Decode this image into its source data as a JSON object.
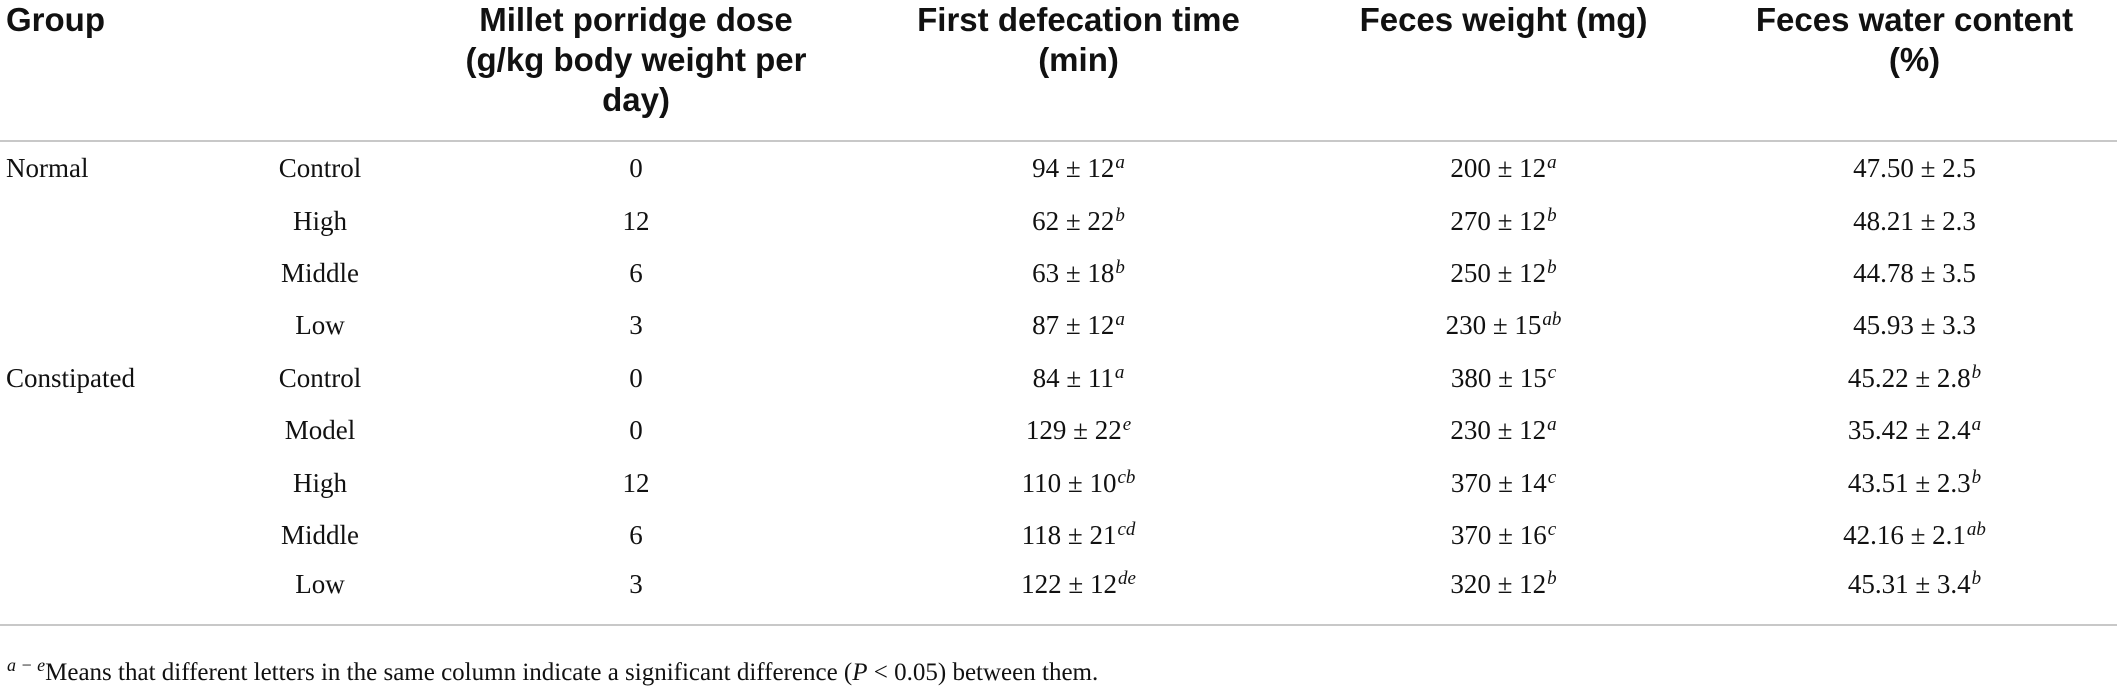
{
  "headers": {
    "group": "Group",
    "dose_lines": [
      "Millet porridge dose",
      "(g/kg body weight per",
      "day)"
    ],
    "defecation_lines": [
      "First defecation time",
      "(min)"
    ],
    "weight": "Feces weight (mg)",
    "water_lines": [
      "Feces water content",
      "(%)"
    ]
  },
  "rows": [
    {
      "group": "Normal",
      "sub": "Control",
      "dose": "0",
      "def": "94 ± 12",
      "def_sup": "a",
      "wt": "200 ± 12",
      "wt_sup": "a",
      "water": "47.50 ± 2.5",
      "water_sup": ""
    },
    {
      "group": "",
      "sub": "High",
      "dose": "12",
      "def": "62 ± 22",
      "def_sup": "b",
      "wt": "270 ± 12",
      "wt_sup": "b",
      "water": "48.21 ± 2.3",
      "water_sup": ""
    },
    {
      "group": "",
      "sub": "Middle",
      "dose": "6",
      "def": "63 ± 18",
      "def_sup": "b",
      "wt": "250 ± 12",
      "wt_sup": "b",
      "water": "44.78 ± 3.5",
      "water_sup": ""
    },
    {
      "group": "",
      "sub": "Low",
      "dose": "3",
      "def": "87 ± 12",
      "def_sup": "a",
      "wt": "230 ± 15",
      "wt_sup": "ab",
      "water": "45.93 ± 3.3",
      "water_sup": ""
    },
    {
      "group": "Constipated",
      "sub": "Control",
      "dose": "0",
      "def": "84 ± 11",
      "def_sup": "a",
      "wt": "380 ± 15",
      "wt_sup": "c",
      "water": "45.22 ± 2.8",
      "water_sup": "b"
    },
    {
      "group": "",
      "sub": "Model",
      "dose": "0",
      "def": "129 ± 22",
      "def_sup": "e",
      "wt": "230 ± 12",
      "wt_sup": "a",
      "water": "35.42 ± 2.4",
      "water_sup": "a"
    },
    {
      "group": "",
      "sub": "High",
      "dose": "12",
      "def": "110 ± 10",
      "def_sup": "cb",
      "wt": "370 ± 14",
      "wt_sup": "c",
      "water": "43.51 ± 2.3",
      "water_sup": "b"
    },
    {
      "group": "",
      "sub": "Middle",
      "dose": "6",
      "def": "118 ± 21",
      "def_sup": "cd",
      "wt": "370 ± 16",
      "wt_sup": "c",
      "water": "42.16 ± 2.1",
      "water_sup": "ab"
    },
    {
      "group": "",
      "sub": "Low",
      "dose": "3",
      "def": "122 ± 12",
      "def_sup": "de",
      "wt": "320 ± 12",
      "wt_sup": "b",
      "water": "45.31 ± 3.4",
      "water_sup": "b"
    }
  ],
  "footnote": {
    "sup": "a − e",
    "text_before": "Means that different letters in the same column indicate a significant difference (",
    "p_var": "P",
    "text_after": " < 0.05) between them."
  }
}
